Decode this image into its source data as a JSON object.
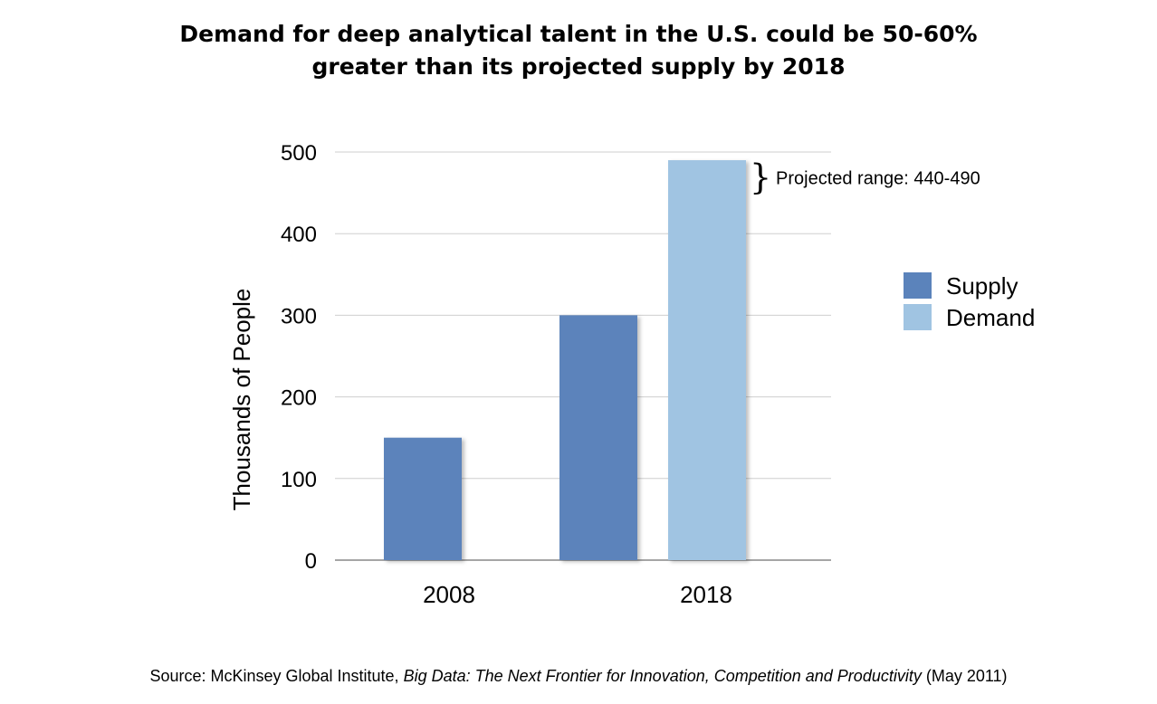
{
  "chart_data": {
    "type": "bar",
    "title": "Demand for deep analytical talent in the U.S. could be 50-60% greater than its projected supply by 2018",
    "title_lines": [
      "Demand for deep analytical talent in the U.S. could be 50-60%",
      "greater than its projected supply by 2018"
    ],
    "xlabel": "",
    "ylabel": "Thousands of People",
    "ylim": [
      0,
      500
    ],
    "yticks": [
      0,
      100,
      200,
      300,
      400,
      500
    ],
    "grid": true,
    "legend_position": "right",
    "categories": [
      "2008",
      "2018"
    ],
    "series": [
      {
        "name": "Supply",
        "color": "#5b83bb",
        "values": [
          150,
          300
        ]
      },
      {
        "name": "Demand",
        "color": "#a0c4e2",
        "values": [
          null,
          490
        ]
      }
    ],
    "annotation": {
      "text": "Projected range: 440-490",
      "category": "2018",
      "series": "Demand",
      "range": [
        440,
        490
      ]
    }
  },
  "source": {
    "prefix": "Source: McKinsey Global Institute, ",
    "title": "Big Data: The Next Frontier for Innovation, Competition and Productivity",
    "suffix": " (May 2011)"
  }
}
